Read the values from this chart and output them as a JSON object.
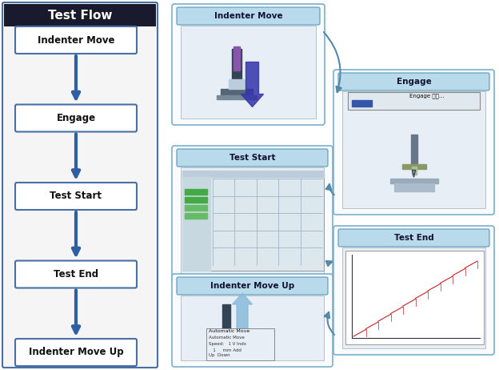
{
  "title": "Test Flow",
  "title_bg": "#1a1a2e",
  "title_color": "#ffffff",
  "flow_steps": [
    "Indenter Move",
    "Engage",
    "Test Start",
    "Test End",
    "Indenter Move Up"
  ],
  "flow_box_color": "#ffffff",
  "flow_box_edge": "#4a6fa5",
  "flow_arrow_color": "#2e5fa3",
  "panel_bg": "#f0f0f0",
  "left_panel_bg": "#e8e8e8",
  "right_label_bg": "#a8d0e6",
  "right_label_text": "#000000",
  "image_labels": [
    "Indenter Move",
    "Engage",
    "Test Start",
    "Test End",
    "Indenter Move Up"
  ],
  "curve_arrow_color": "#5588aa",
  "fig_bg": "#ffffff"
}
